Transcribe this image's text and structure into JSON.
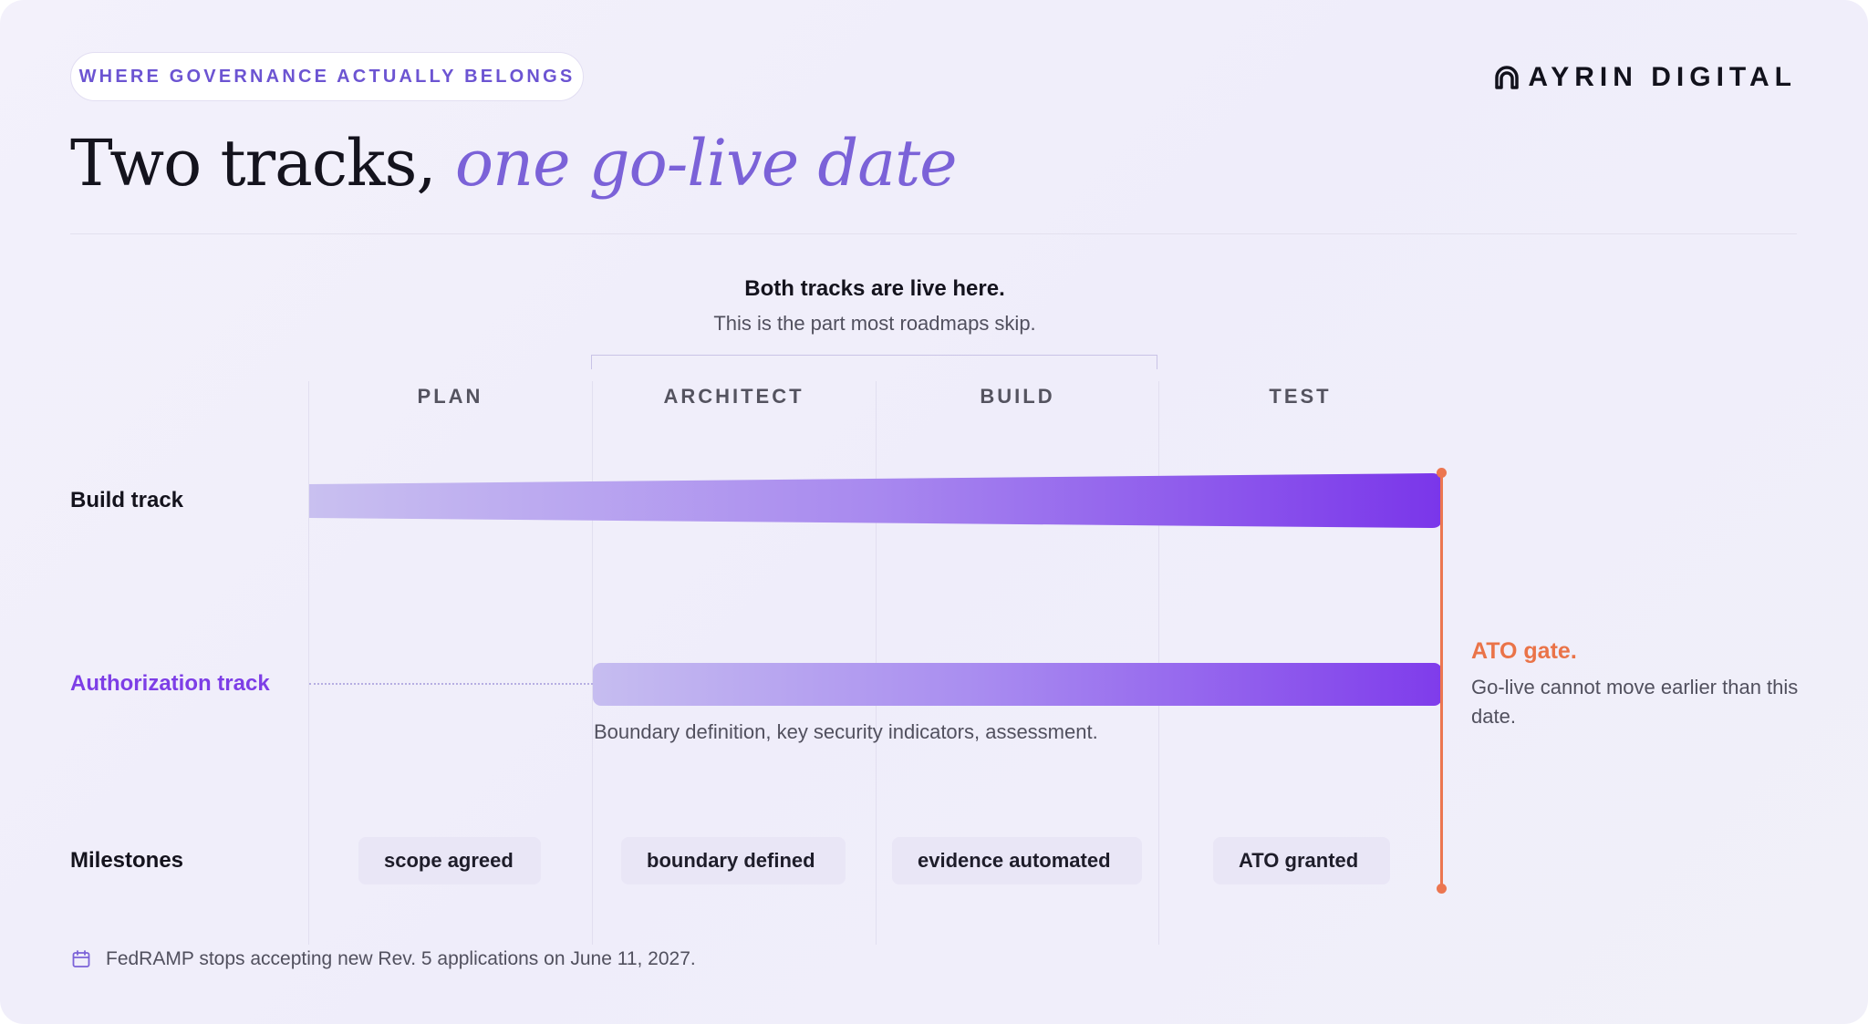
{
  "header": {
    "eyebrow": "WHERE GOVERNANCE ACTUALLY BELONGS",
    "brand": "AYRIN DIGITAL",
    "brand_icon": "arch-logo-icon",
    "title_plain": "Two tracks, ",
    "title_accent": "one go-live date"
  },
  "callout": {
    "title": "Both tracks are live here.",
    "subtitle": "This is the part most roadmaps skip."
  },
  "phases": [
    "PLAN",
    "ARCHITECT",
    "BUILD",
    "TEST"
  ],
  "rows": {
    "build": "Build track",
    "authorization": "Authorization track",
    "milestones": "Milestones"
  },
  "authorization_description": "Boundary definition, key security indicators, assessment.",
  "gate": {
    "title": "ATO gate.",
    "text": "Go-live cannot move earlier than this date."
  },
  "milestones": [
    "scope agreed",
    "boundary defined",
    "evidence automated",
    "ATO granted"
  ],
  "footnote": {
    "icon": "calendar-icon",
    "text": "FedRAMP stops accepting new Rev. 5 applications on June 11, 2027."
  },
  "colors": {
    "accent_purple": "#7b62d8",
    "track_purple": "#7d3ee6",
    "gate_orange": "#ec7650",
    "text_dark": "#14131d"
  }
}
